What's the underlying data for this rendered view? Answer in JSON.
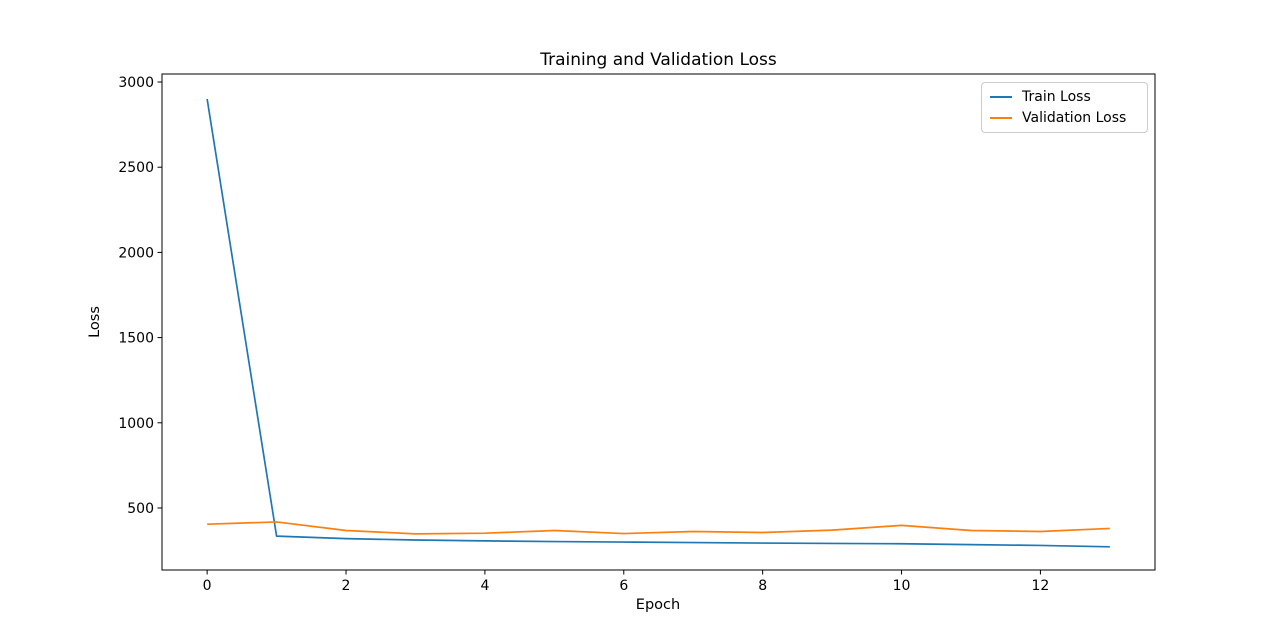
{
  "figure": {
    "background": "#ffffff",
    "frame_color": "#000000"
  },
  "chart_data": {
    "type": "line",
    "title": "Training and Validation Loss",
    "xlabel": "Epoch",
    "ylabel": "Loss",
    "x": [
      0,
      1,
      2,
      3,
      4,
      5,
      6,
      7,
      8,
      9,
      10,
      11,
      12,
      13
    ],
    "series": [
      {
        "name": "Train Loss",
        "color": "#1f77b4",
        "values": [
          2900,
          335,
          320,
          312,
          307,
          303,
          300,
          297,
          294,
          292,
          290,
          285,
          280,
          272
        ]
      },
      {
        "name": "Validation Loss",
        "color": "#ff7f0e",
        "values": [
          405,
          418,
          368,
          348,
          352,
          368,
          350,
          362,
          356,
          370,
          398,
          368,
          362,
          380
        ]
      }
    ],
    "xlim": [
      -0.65,
      13.65
    ],
    "ylim": [
      136,
      3047
    ],
    "x_ticks": [
      0,
      2,
      4,
      6,
      8,
      10,
      12
    ],
    "y_ticks": [
      500,
      1000,
      1500,
      2000,
      2500,
      3000
    ],
    "grid": false,
    "legend_position": "upper right"
  }
}
